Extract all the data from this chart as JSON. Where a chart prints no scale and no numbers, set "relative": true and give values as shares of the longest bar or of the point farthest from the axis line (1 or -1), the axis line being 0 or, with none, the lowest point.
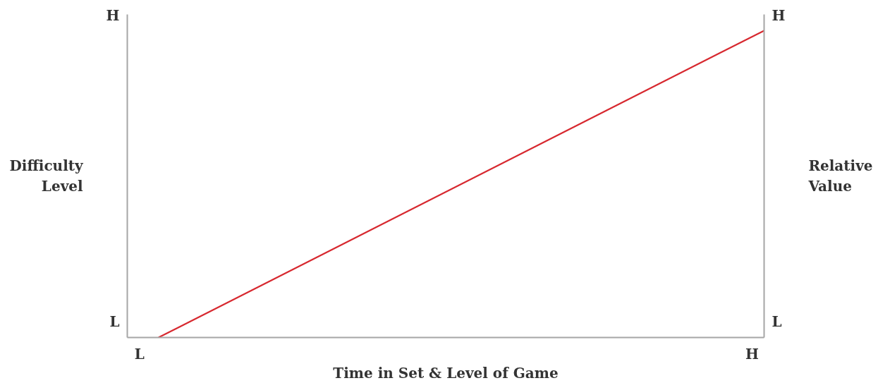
{
  "chart_data": {
    "type": "line",
    "xlabel": "Time in Set & Level of Game",
    "ylabel": "Difficulty\nLevel",
    "y2label": "Relative\nValue",
    "relative": true,
    "categories": [
      null,
      null
    ],
    "grid": false,
    "annotations": [
      "H",
      "L",
      "L",
      "H",
      "H",
      "L"
    ],
    "series": [
      {
        "color": "#d7282f",
        "values": [
          0,
          1
        ]
      }
    ]
  }
}
